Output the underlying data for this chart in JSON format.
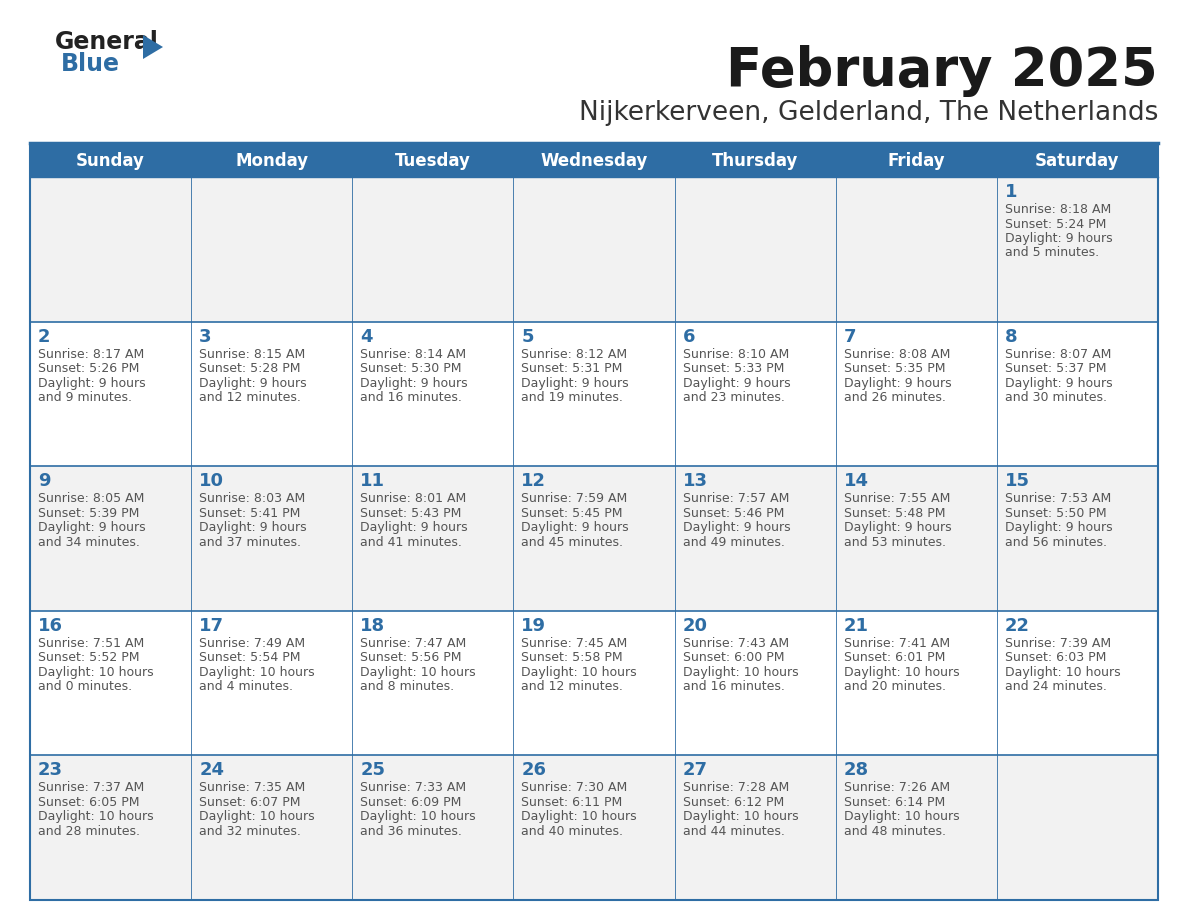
{
  "title": "February 2025",
  "subtitle": "Nijkerkerveen, Gelderland, The Netherlands",
  "header_bg": "#2E6DA4",
  "header_text_color": "#FFFFFF",
  "cell_bg_odd": "#F2F2F2",
  "cell_bg_even": "#FFFFFF",
  "day_number_color": "#2E6DA4",
  "info_text_color": "#555555",
  "border_color": "#2E6DA4",
  "days_of_week": [
    "Sunday",
    "Monday",
    "Tuesday",
    "Wednesday",
    "Thursday",
    "Friday",
    "Saturday"
  ],
  "weeks": [
    [
      null,
      null,
      null,
      null,
      null,
      null,
      1
    ],
    [
      2,
      3,
      4,
      5,
      6,
      7,
      8
    ],
    [
      9,
      10,
      11,
      12,
      13,
      14,
      15
    ],
    [
      16,
      17,
      18,
      19,
      20,
      21,
      22
    ],
    [
      23,
      24,
      25,
      26,
      27,
      28,
      null
    ]
  ],
  "day_data": {
    "1": {
      "sunrise": "8:18 AM",
      "sunset": "5:24 PM",
      "daylight_hours": 9,
      "daylight_minutes": 5
    },
    "2": {
      "sunrise": "8:17 AM",
      "sunset": "5:26 PM",
      "daylight_hours": 9,
      "daylight_minutes": 9
    },
    "3": {
      "sunrise": "8:15 AM",
      "sunset": "5:28 PM",
      "daylight_hours": 9,
      "daylight_minutes": 12
    },
    "4": {
      "sunrise": "8:14 AM",
      "sunset": "5:30 PM",
      "daylight_hours": 9,
      "daylight_minutes": 16
    },
    "5": {
      "sunrise": "8:12 AM",
      "sunset": "5:31 PM",
      "daylight_hours": 9,
      "daylight_minutes": 19
    },
    "6": {
      "sunrise": "8:10 AM",
      "sunset": "5:33 PM",
      "daylight_hours": 9,
      "daylight_minutes": 23
    },
    "7": {
      "sunrise": "8:08 AM",
      "sunset": "5:35 PM",
      "daylight_hours": 9,
      "daylight_minutes": 26
    },
    "8": {
      "sunrise": "8:07 AM",
      "sunset": "5:37 PM",
      "daylight_hours": 9,
      "daylight_minutes": 30
    },
    "9": {
      "sunrise": "8:05 AM",
      "sunset": "5:39 PM",
      "daylight_hours": 9,
      "daylight_minutes": 34
    },
    "10": {
      "sunrise": "8:03 AM",
      "sunset": "5:41 PM",
      "daylight_hours": 9,
      "daylight_minutes": 37
    },
    "11": {
      "sunrise": "8:01 AM",
      "sunset": "5:43 PM",
      "daylight_hours": 9,
      "daylight_minutes": 41
    },
    "12": {
      "sunrise": "7:59 AM",
      "sunset": "5:45 PM",
      "daylight_hours": 9,
      "daylight_minutes": 45
    },
    "13": {
      "sunrise": "7:57 AM",
      "sunset": "5:46 PM",
      "daylight_hours": 9,
      "daylight_minutes": 49
    },
    "14": {
      "sunrise": "7:55 AM",
      "sunset": "5:48 PM",
      "daylight_hours": 9,
      "daylight_minutes": 53
    },
    "15": {
      "sunrise": "7:53 AM",
      "sunset": "5:50 PM",
      "daylight_hours": 9,
      "daylight_minutes": 56
    },
    "16": {
      "sunrise": "7:51 AM",
      "sunset": "5:52 PM",
      "daylight_hours": 10,
      "daylight_minutes": 0
    },
    "17": {
      "sunrise": "7:49 AM",
      "sunset": "5:54 PM",
      "daylight_hours": 10,
      "daylight_minutes": 4
    },
    "18": {
      "sunrise": "7:47 AM",
      "sunset": "5:56 PM",
      "daylight_hours": 10,
      "daylight_minutes": 8
    },
    "19": {
      "sunrise": "7:45 AM",
      "sunset": "5:58 PM",
      "daylight_hours": 10,
      "daylight_minutes": 12
    },
    "20": {
      "sunrise": "7:43 AM",
      "sunset": "6:00 PM",
      "daylight_hours": 10,
      "daylight_minutes": 16
    },
    "21": {
      "sunrise": "7:41 AM",
      "sunset": "6:01 PM",
      "daylight_hours": 10,
      "daylight_minutes": 20
    },
    "22": {
      "sunrise": "7:39 AM",
      "sunset": "6:03 PM",
      "daylight_hours": 10,
      "daylight_minutes": 24
    },
    "23": {
      "sunrise": "7:37 AM",
      "sunset": "6:05 PM",
      "daylight_hours": 10,
      "daylight_minutes": 28
    },
    "24": {
      "sunrise": "7:35 AM",
      "sunset": "6:07 PM",
      "daylight_hours": 10,
      "daylight_minutes": 32
    },
    "25": {
      "sunrise": "7:33 AM",
      "sunset": "6:09 PM",
      "daylight_hours": 10,
      "daylight_minutes": 36
    },
    "26": {
      "sunrise": "7:30 AM",
      "sunset": "6:11 PM",
      "daylight_hours": 10,
      "daylight_minutes": 40
    },
    "27": {
      "sunrise": "7:28 AM",
      "sunset": "6:12 PM",
      "daylight_hours": 10,
      "daylight_minutes": 44
    },
    "28": {
      "sunrise": "7:26 AM",
      "sunset": "6:14 PM",
      "daylight_hours": 10,
      "daylight_minutes": 48
    }
  }
}
